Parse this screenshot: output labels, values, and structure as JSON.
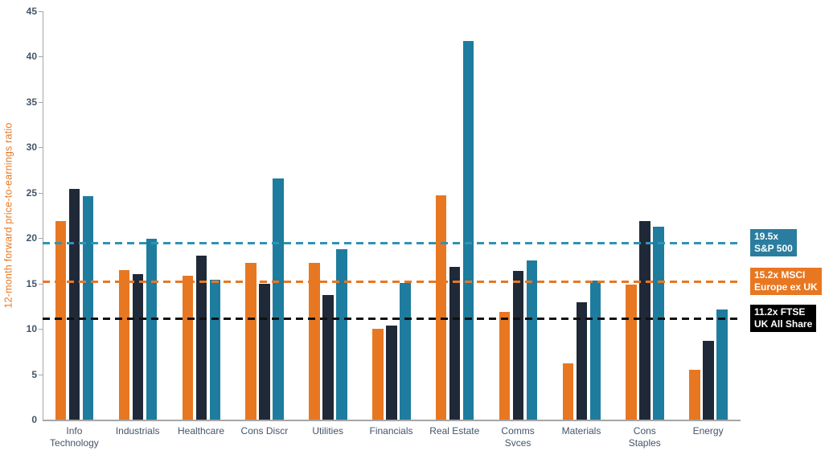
{
  "chart_data": {
    "type": "bar",
    "title": "",
    "ylabel": "12-month forward price-to-earnings ratio",
    "xlabel": "",
    "ylim": [
      0,
      45
    ],
    "ytick_step": 5,
    "grid": false,
    "legend_position": "none",
    "categories": [
      [
        "Info",
        "Technology"
      ],
      [
        "Industrials"
      ],
      [
        "Healthcare"
      ],
      [
        "Cons Discr"
      ],
      [
        "Utilities"
      ],
      [
        "Financials"
      ],
      [
        "Real Estate"
      ],
      [
        "Comms",
        "Svces"
      ],
      [
        "Materials"
      ],
      [
        "Cons",
        "Staples"
      ],
      [
        "Energy"
      ]
    ],
    "series": [
      {
        "name": "orange-series",
        "color": "#E87722",
        "values": [
          21.9,
          16.5,
          15.9,
          17.3,
          17.3,
          10.0,
          24.7,
          11.9,
          6.2,
          14.9,
          5.5
        ]
      },
      {
        "name": "dark-navy-series",
        "color": "#1F2937",
        "values": [
          25.4,
          16.0,
          18.1,
          15.0,
          13.7,
          10.4,
          16.8,
          16.4,
          12.9,
          21.9,
          8.7
        ]
      },
      {
        "name": "teal-series",
        "color": "#1E7C9E",
        "values": [
          24.6,
          19.9,
          15.4,
          26.6,
          18.8,
          15.1,
          41.7,
          17.5,
          15.3,
          21.3,
          12.1
        ]
      }
    ],
    "reference_lines": [
      {
        "value": 19.5,
        "label_lines": [
          "19.5x",
          "S&P 500"
        ],
        "line_color": "#2E93B5",
        "box_color": "#2A7D9F"
      },
      {
        "value": 15.2,
        "label_lines": [
          "15.2x MSCI",
          "Europe ex UK"
        ],
        "line_color": "#E87722",
        "box_color": "#E87722"
      },
      {
        "value": 11.2,
        "label_lines": [
          "11.2x FTSE",
          "UK All Share"
        ],
        "line_color": "#111111",
        "box_color": "#000000"
      }
    ]
  },
  "colors": {
    "axis_text": "#44546A",
    "ylabel_text": "#E87722",
    "axis_line": "#A6A6A6",
    "background": "#FFFFFF"
  }
}
